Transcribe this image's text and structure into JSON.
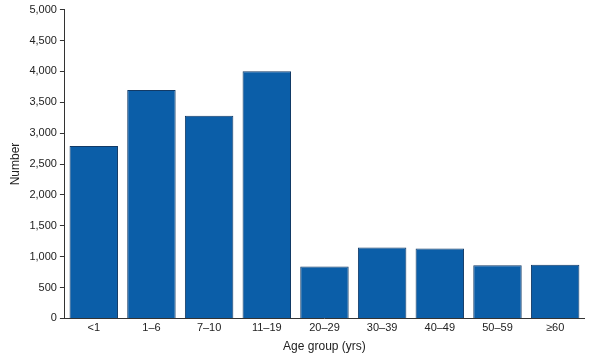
{
  "chart_data": {
    "type": "bar",
    "x_label": "Age group (yrs)",
    "y_label": "Number",
    "categories": [
      "<1",
      "1–6",
      "7–10",
      "11–19",
      "20–29",
      "30–39",
      "40–49",
      "50–59",
      "≥60"
    ],
    "values": [
      2790,
      3700,
      3280,
      4000,
      840,
      1150,
      1130,
      860,
      870
    ],
    "color": "#0b5ea8",
    "ylim": [
      0,
      5000
    ],
    "yticks": [
      0,
      500,
      {
        "value": 1000,
        "label": "1,000"
      },
      {
        "value": 1500,
        "label": "1,500"
      },
      {
        "value": 2000,
        "label": "2,000"
      },
      {
        "value": 2500,
        "label": "2,500"
      },
      {
        "value": 3000,
        "label": "3,000"
      },
      {
        "value": 3500,
        "label": "3,500"
      },
      {
        "value": 4000,
        "label": "4,000"
      },
      {
        "value": 4500,
        "label": "4,500"
      },
      {
        "value": 5000,
        "label": "5,000"
      }
    ],
    "grid": false
  }
}
